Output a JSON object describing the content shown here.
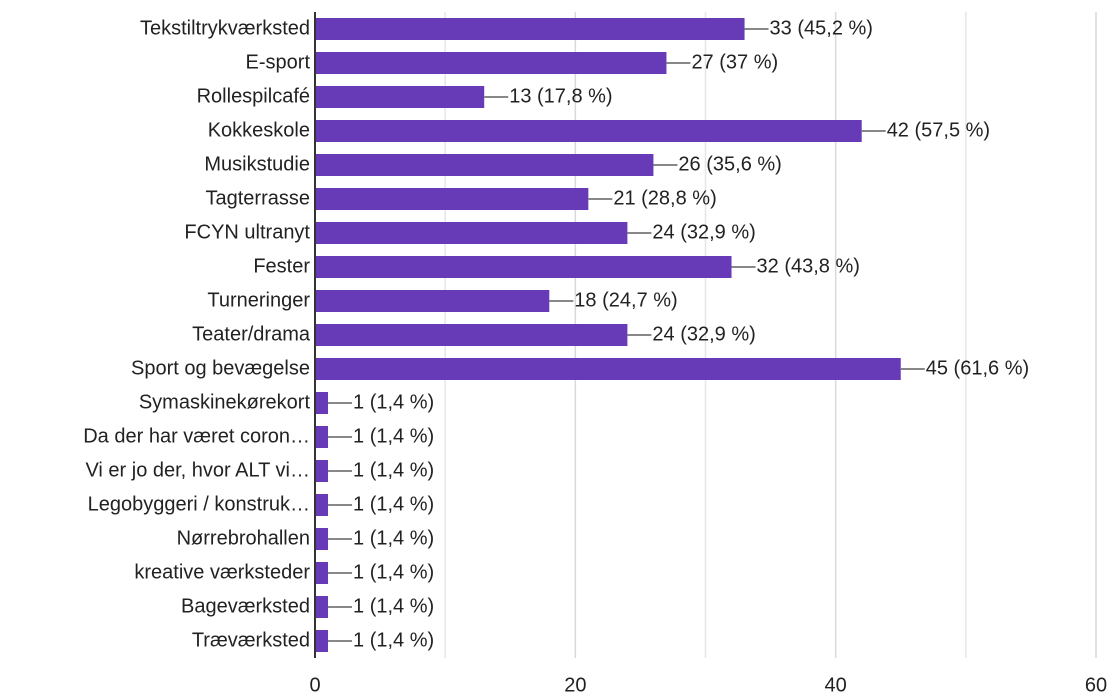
{
  "chart_data": {
    "type": "barh",
    "categories": [
      "Tekstiltrykværksted",
      "E-sport",
      "Rollespilcafé",
      "Kokkeskole",
      "Musikstudie",
      "Tagterrasse",
      "FCYN ultranyt",
      "Fester",
      "Turneringer",
      "Teater/drama",
      "Sport og bevægelse",
      "Symaskinekørekort",
      "Da der har været coron…",
      "Vi er jo der, hvor ALT vi…",
      "Legobyggeri / konstruk…",
      "Nørrebrohallen",
      "kreative værksteder",
      "Bageværksted",
      "Træværksted"
    ],
    "values": [
      33,
      27,
      13,
      42,
      26,
      21,
      24,
      32,
      18,
      24,
      45,
      1,
      1,
      1,
      1,
      1,
      1,
      1,
      1
    ],
    "value_labels": [
      "33 (45,2 %)",
      "27 (37 %)",
      "13 (17,8 %)",
      "42 (57,5 %)",
      "26 (35,6 %)",
      "21 (28,8 %)",
      "24 (32,9 %)",
      "32 (43,8 %)",
      "18 (24,7 %)",
      "24 (32,9 %)",
      "45 (61,6 %)",
      "1 (1,4 %)",
      "1 (1,4 %)",
      "1 (1,4 %)",
      "1 (1,4 %)",
      "1 (1,4 %)",
      "1 (1,4 %)",
      "1 (1,4 %)",
      "1 (1,4 %)"
    ],
    "color": "#673ab7",
    "xlim": [
      0,
      60
    ],
    "xticks": [
      0,
      20,
      40,
      60
    ],
    "xminor_ticks": [
      10,
      30,
      50
    ],
    "grid": true
  }
}
